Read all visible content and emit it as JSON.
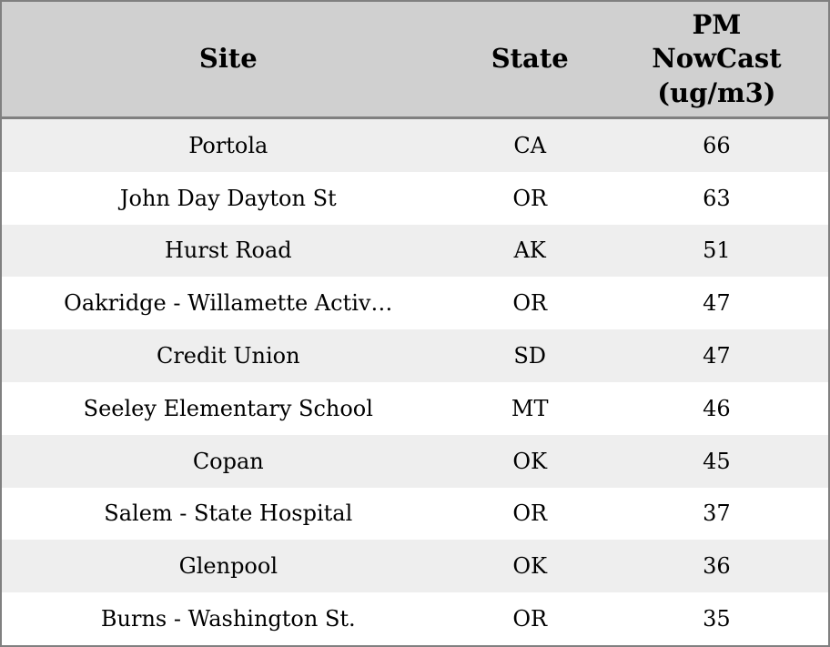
{
  "colors": {
    "header_bg": "#d0d0d0",
    "row_alt_bg": "#eeeeee",
    "row_bg": "#ffffff",
    "border": "#808080",
    "text": "#000000"
  },
  "chart_data": {
    "type": "table",
    "title": "",
    "columns": [
      {
        "id": "site",
        "label": "Site"
      },
      {
        "id": "state",
        "label": "State"
      },
      {
        "id": "pm_nowcast",
        "label": "PM\nNowCast\n(ug/m3)"
      }
    ],
    "rows": [
      {
        "site": "Portola",
        "state": "CA",
        "pm_nowcast": 66
      },
      {
        "site": "John Day Dayton St",
        "state": "OR",
        "pm_nowcast": 63
      },
      {
        "site": "Hurst Road",
        "state": "AK",
        "pm_nowcast": 51
      },
      {
        "site": "Oakridge - Willamette Activ…",
        "state": "OR",
        "pm_nowcast": 47
      },
      {
        "site": "Credit Union",
        "state": "SD",
        "pm_nowcast": 47
      },
      {
        "site": "Seeley Elementary School",
        "state": "MT",
        "pm_nowcast": 46
      },
      {
        "site": "Copan",
        "state": "OK",
        "pm_nowcast": 45
      },
      {
        "site": "Salem - State Hospital",
        "state": "OR",
        "pm_nowcast": 37
      },
      {
        "site": "Glenpool",
        "state": "OK",
        "pm_nowcast": 36
      },
      {
        "site": "Burns - Washington St.",
        "state": "OR",
        "pm_nowcast": 35
      }
    ]
  }
}
